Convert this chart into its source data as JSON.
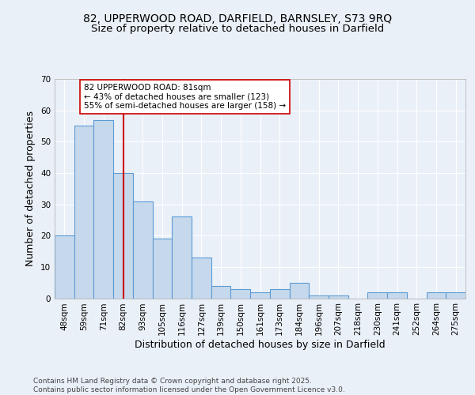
{
  "title_line1": "82, UPPERWOOD ROAD, DARFIELD, BARNSLEY, S73 9RQ",
  "title_line2": "Size of property relative to detached houses in Darfield",
  "xlabel": "Distribution of detached houses by size in Darfield",
  "ylabel": "Number of detached properties",
  "bin_labels": [
    "48sqm",
    "59sqm",
    "71sqm",
    "82sqm",
    "93sqm",
    "105sqm",
    "116sqm",
    "127sqm",
    "139sqm",
    "150sqm",
    "161sqm",
    "173sqm",
    "184sqm",
    "196sqm",
    "207sqm",
    "218sqm",
    "230sqm",
    "241sqm",
    "252sqm",
    "264sqm",
    "275sqm"
  ],
  "bar_heights": [
    20,
    55,
    57,
    40,
    31,
    19,
    26,
    13,
    4,
    3,
    2,
    3,
    5,
    1,
    1,
    0,
    2,
    2,
    0,
    2,
    2
  ],
  "bar_color": "#c6d9ec",
  "bar_edge_color": "#5b9bd5",
  "vline_x": 3,
  "vline_color": "#cc0000",
  "annotation_text": "82 UPPERWOOD ROAD: 81sqm\n← 43% of detached houses are smaller (123)\n55% of semi-detached houses are larger (158) →",
  "annotation_box_color": "#ffffff",
  "annotation_box_edge": "#cc0000",
  "ylim": [
    0,
    70
  ],
  "yticks": [
    0,
    10,
    20,
    30,
    40,
    50,
    60,
    70
  ],
  "footnote": "Contains HM Land Registry data © Crown copyright and database right 2025.\nContains public sector information licensed under the Open Government Licence v3.0.",
  "bg_color": "#eaf0f8",
  "grid_color": "#ffffff",
  "title_fontsize": 10,
  "subtitle_fontsize": 9.5,
  "axis_label_fontsize": 9,
  "tick_fontsize": 7.5,
  "footnote_fontsize": 6.5,
  "annotation_fontsize": 7.5
}
